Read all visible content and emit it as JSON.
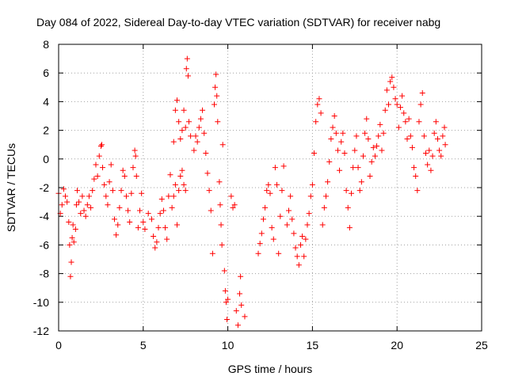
{
  "chart_data": {
    "type": "scatter",
    "title": "Day 084 of 2022, Sidereal Day-to-day VTEC variation (SDTVAR) for receiver nabg",
    "xlabel": "GPS time / hours",
    "ylabel": "SDTVAR / TECUs",
    "xlim": [
      0,
      25
    ],
    "ylim": [
      -12,
      8
    ],
    "xticks": [
      0,
      5,
      10,
      15,
      20,
      25
    ],
    "yticks": [
      -12,
      -10,
      -8,
      -6,
      -4,
      -2,
      0,
      2,
      4,
      6,
      8
    ],
    "grid": true,
    "marker": "+",
    "color": "#ff0000",
    "series": [
      {
        "name": "SDTVAR",
        "points": [
          [
            0.0,
            -2.4
          ],
          [
            0.1,
            -3.8
          ],
          [
            0.2,
            -3.2
          ],
          [
            0.3,
            -2.1
          ],
          [
            0.4,
            -2.6
          ],
          [
            0.5,
            -3.0
          ],
          [
            0.6,
            -4.4
          ],
          [
            0.65,
            -6.0
          ],
          [
            0.7,
            -8.2
          ],
          [
            0.75,
            -7.2
          ],
          [
            0.8,
            -5.5
          ],
          [
            0.85,
            -4.6
          ],
          [
            0.9,
            -5.8
          ],
          [
            1.0,
            -4.9
          ],
          [
            1.05,
            -3.2
          ],
          [
            1.1,
            -2.2
          ],
          [
            1.2,
            -3.0
          ],
          [
            1.3,
            -3.8
          ],
          [
            1.4,
            -2.6
          ],
          [
            1.5,
            -3.6
          ],
          [
            1.6,
            -4.0
          ],
          [
            1.7,
            -3.2
          ],
          [
            1.8,
            -2.6
          ],
          [
            1.9,
            -3.4
          ],
          [
            2.0,
            -2.2
          ],
          [
            2.1,
            -1.4
          ],
          [
            2.2,
            -0.4
          ],
          [
            2.3,
            -1.2
          ],
          [
            2.4,
            0.2
          ],
          [
            2.5,
            0.9
          ],
          [
            2.55,
            1.0
          ],
          [
            2.6,
            -0.6
          ],
          [
            2.7,
            -1.8
          ],
          [
            2.8,
            -2.6
          ],
          [
            2.9,
            -3.2
          ],
          [
            3.0,
            -1.6
          ],
          [
            3.1,
            -0.4
          ],
          [
            3.2,
            -2.2
          ],
          [
            3.3,
            -4.2
          ],
          [
            3.4,
            -5.3
          ],
          [
            3.5,
            -4.6
          ],
          [
            3.6,
            -3.4
          ],
          [
            3.7,
            -2.2
          ],
          [
            3.8,
            -0.8
          ],
          [
            3.9,
            -1.2
          ],
          [
            4.0,
            -2.6
          ],
          [
            4.1,
            -3.6
          ],
          [
            4.2,
            -4.4
          ],
          [
            4.3,
            -2.4
          ],
          [
            4.4,
            -0.6
          ],
          [
            4.5,
            0.6
          ],
          [
            4.55,
            0.2
          ],
          [
            4.6,
            -1.2
          ],
          [
            4.7,
            -4.8
          ],
          [
            4.8,
            -3.6
          ],
          [
            4.9,
            -2.4
          ],
          [
            5.0,
            -4.4
          ],
          [
            5.1,
            -4.9
          ],
          [
            5.3,
            -3.8
          ],
          [
            5.5,
            -4.2
          ],
          [
            5.6,
            -5.4
          ],
          [
            5.7,
            -6.2
          ],
          [
            5.8,
            -5.8
          ],
          [
            5.9,
            -4.8
          ],
          [
            6.0,
            -3.8
          ],
          [
            6.1,
            -2.8
          ],
          [
            6.2,
            -3.6
          ],
          [
            6.3,
            -4.8
          ],
          [
            6.4,
            -5.6
          ],
          [
            6.5,
            -2.6
          ],
          [
            6.6,
            -1.1
          ],
          [
            6.7,
            -3.4
          ],
          [
            6.8,
            -2.6
          ],
          [
            6.9,
            -1.8
          ],
          [
            7.0,
            -4.6
          ],
          [
            7.1,
            -2.2
          ],
          [
            7.2,
            -1.2
          ],
          [
            7.3,
            -0.8
          ],
          [
            7.4,
            -1.8
          ],
          [
            7.5,
            -2.2
          ],
          [
            6.8,
            1.2
          ],
          [
            6.9,
            3.4
          ],
          [
            7.0,
            4.1
          ],
          [
            7.1,
            2.6
          ],
          [
            7.2,
            1.4
          ],
          [
            7.3,
            2.0
          ],
          [
            7.4,
            3.4
          ],
          [
            7.5,
            2.2
          ],
          [
            7.55,
            6.3
          ],
          [
            7.6,
            7.0
          ],
          [
            7.65,
            5.8
          ],
          [
            7.7,
            2.6
          ],
          [
            7.8,
            1.6
          ],
          [
            8.0,
            0.6
          ],
          [
            8.1,
            1.6
          ],
          [
            8.2,
            1.2
          ],
          [
            8.3,
            2.2
          ],
          [
            8.4,
            2.8
          ],
          [
            8.5,
            3.4
          ],
          [
            8.6,
            1.8
          ],
          [
            8.7,
            0.4
          ],
          [
            8.8,
            -1.0
          ],
          [
            8.9,
            -2.2
          ],
          [
            9.0,
            -3.6
          ],
          [
            9.1,
            -6.6
          ],
          [
            9.2,
            3.8
          ],
          [
            9.25,
            5.0
          ],
          [
            9.3,
            5.9
          ],
          [
            9.35,
            4.4
          ],
          [
            9.4,
            2.6
          ],
          [
            9.5,
            -1.6
          ],
          [
            9.55,
            -3.2
          ],
          [
            9.6,
            -4.6
          ],
          [
            9.65,
            -6.0
          ],
          [
            9.7,
            1.0
          ],
          [
            9.8,
            -7.8
          ],
          [
            9.85,
            -9.2
          ],
          [
            9.9,
            -10.0
          ],
          [
            9.95,
            -11.2
          ],
          [
            10.0,
            -9.8
          ],
          [
            10.2,
            -2.6
          ],
          [
            10.3,
            -3.4
          ],
          [
            10.4,
            -3.2
          ],
          [
            10.5,
            -10.6
          ],
          [
            10.6,
            -11.6
          ],
          [
            10.7,
            -9.4
          ],
          [
            10.75,
            -8.2
          ],
          [
            10.8,
            -10.2
          ],
          [
            11.0,
            -11.0
          ],
          [
            11.8,
            -6.6
          ],
          [
            11.9,
            -5.9
          ],
          [
            12.0,
            -5.2
          ],
          [
            12.1,
            -4.2
          ],
          [
            12.2,
            -3.4
          ],
          [
            12.3,
            -2.2
          ],
          [
            12.4,
            -1.8
          ],
          [
            12.5,
            -2.4
          ],
          [
            12.6,
            -4.8
          ],
          [
            12.7,
            -5.6
          ],
          [
            12.8,
            -0.6
          ],
          [
            12.9,
            -1.8
          ],
          [
            13.0,
            -6.6
          ],
          [
            13.1,
            -4.0
          ],
          [
            13.2,
            -2.2
          ],
          [
            13.3,
            -0.5
          ],
          [
            13.5,
            -4.6
          ],
          [
            13.6,
            -3.6
          ],
          [
            13.7,
            -2.6
          ],
          [
            13.8,
            -4.2
          ],
          [
            13.9,
            -5.2
          ],
          [
            14.0,
            -6.2
          ],
          [
            14.1,
            -6.8
          ],
          [
            14.2,
            -7.4
          ],
          [
            14.3,
            -6.0
          ],
          [
            14.4,
            -5.4
          ],
          [
            14.5,
            -6.8
          ],
          [
            14.6,
            -5.6
          ],
          [
            14.7,
            -4.6
          ],
          [
            14.8,
            -3.8
          ],
          [
            14.9,
            -2.6
          ],
          [
            15.0,
            -1.8
          ],
          [
            15.1,
            0.4
          ],
          [
            15.2,
            2.6
          ],
          [
            15.3,
            3.8
          ],
          [
            15.4,
            4.2
          ],
          [
            15.5,
            3.2
          ],
          [
            15.6,
            -4.6
          ],
          [
            15.7,
            -3.4
          ],
          [
            15.8,
            -2.6
          ],
          [
            15.9,
            -1.6
          ],
          [
            16.0,
            -0.2
          ],
          [
            16.1,
            1.4
          ],
          [
            16.2,
            2.2
          ],
          [
            16.3,
            3.0
          ],
          [
            16.4,
            1.8
          ],
          [
            16.5,
            0.6
          ],
          [
            16.6,
            -0.8
          ],
          [
            16.7,
            1.2
          ],
          [
            16.8,
            1.8
          ],
          [
            16.9,
            0.4
          ],
          [
            17.0,
            -2.2
          ],
          [
            17.1,
            -3.4
          ],
          [
            17.2,
            -4.8
          ],
          [
            17.3,
            -2.4
          ],
          [
            17.4,
            -0.6
          ],
          [
            17.5,
            0.6
          ],
          [
            17.6,
            1.6
          ],
          [
            17.7,
            -0.6
          ],
          [
            17.8,
            -2.2
          ],
          [
            17.9,
            -1.6
          ],
          [
            18.0,
            0.2
          ],
          [
            18.1,
            1.8
          ],
          [
            18.2,
            2.8
          ],
          [
            18.3,
            1.4
          ],
          [
            18.4,
            -1.2
          ],
          [
            18.5,
            -0.2
          ],
          [
            18.6,
            0.8
          ],
          [
            18.7,
            0.2
          ],
          [
            18.8,
            0.9
          ],
          [
            18.9,
            1.6
          ],
          [
            19.0,
            2.4
          ],
          [
            19.1,
            0.6
          ],
          [
            19.2,
            1.8
          ],
          [
            19.3,
            3.4
          ],
          [
            19.4,
            4.8
          ],
          [
            19.5,
            3.8
          ],
          [
            19.6,
            5.4
          ],
          [
            19.7,
            5.7
          ],
          [
            19.8,
            5.0
          ],
          [
            19.9,
            4.2
          ],
          [
            20.0,
            3.8
          ],
          [
            20.1,
            2.2
          ],
          [
            20.2,
            3.6
          ],
          [
            20.3,
            4.4
          ],
          [
            20.4,
            3.2
          ],
          [
            20.5,
            2.6
          ],
          [
            20.6,
            1.4
          ],
          [
            20.7,
            2.8
          ],
          [
            20.8,
            1.6
          ],
          [
            20.9,
            0.8
          ],
          [
            21.0,
            -0.6
          ],
          [
            21.1,
            -1.2
          ],
          [
            21.2,
            -2.2
          ],
          [
            21.3,
            2.6
          ],
          [
            21.4,
            3.8
          ],
          [
            21.5,
            4.6
          ],
          [
            21.6,
            1.6
          ],
          [
            21.7,
            0.4
          ],
          [
            21.8,
            -0.4
          ],
          [
            21.9,
            0.6
          ],
          [
            22.0,
            -0.8
          ],
          [
            22.1,
            0.2
          ],
          [
            22.2,
            1.8
          ],
          [
            22.3,
            2.6
          ],
          [
            22.4,
            1.4
          ],
          [
            22.5,
            0.6
          ],
          [
            22.6,
            0.2
          ],
          [
            22.7,
            1.6
          ],
          [
            22.8,
            2.2
          ],
          [
            22.85,
            1.0
          ]
        ]
      }
    ]
  }
}
